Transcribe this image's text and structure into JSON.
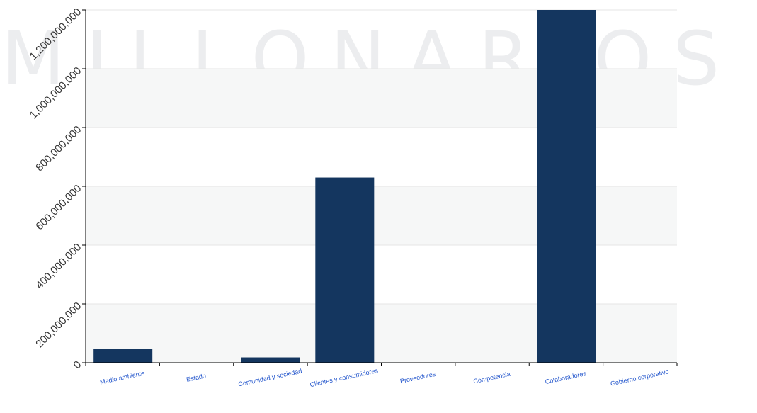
{
  "watermark": "MILLONARIOS FC",
  "colors": {
    "bar": "#14365f",
    "axis": "#000000",
    "grid": "#e6e6e6",
    "plot_band": "#f6f7f7",
    "xtick_text": "#2255cc"
  },
  "chart_data": {
    "type": "bar",
    "title": "",
    "xlabel": "",
    "ylabel": "",
    "categories": [
      "Medio ambiente",
      "Estado",
      "Comunidad y sociedad",
      "Clientes y consumidores",
      "Proveedores",
      "Competencia",
      "Colaboradores",
      "Gobierno corporativo"
    ],
    "values": [
      48000000,
      0,
      18000000,
      630000000,
      0,
      0,
      1200000000,
      0
    ],
    "ylim": [
      0,
      1200000000
    ],
    "yticks": [
      0,
      200000000,
      400000000,
      600000000,
      800000000,
      1000000000,
      1200000000
    ],
    "ytick_labels": [
      "0",
      "200,000,000",
      "400,000,000",
      "600,000,000",
      "800,000,000",
      "1,000,000,000",
      "1,200,000,000"
    ],
    "grid": true,
    "legend": "none"
  }
}
